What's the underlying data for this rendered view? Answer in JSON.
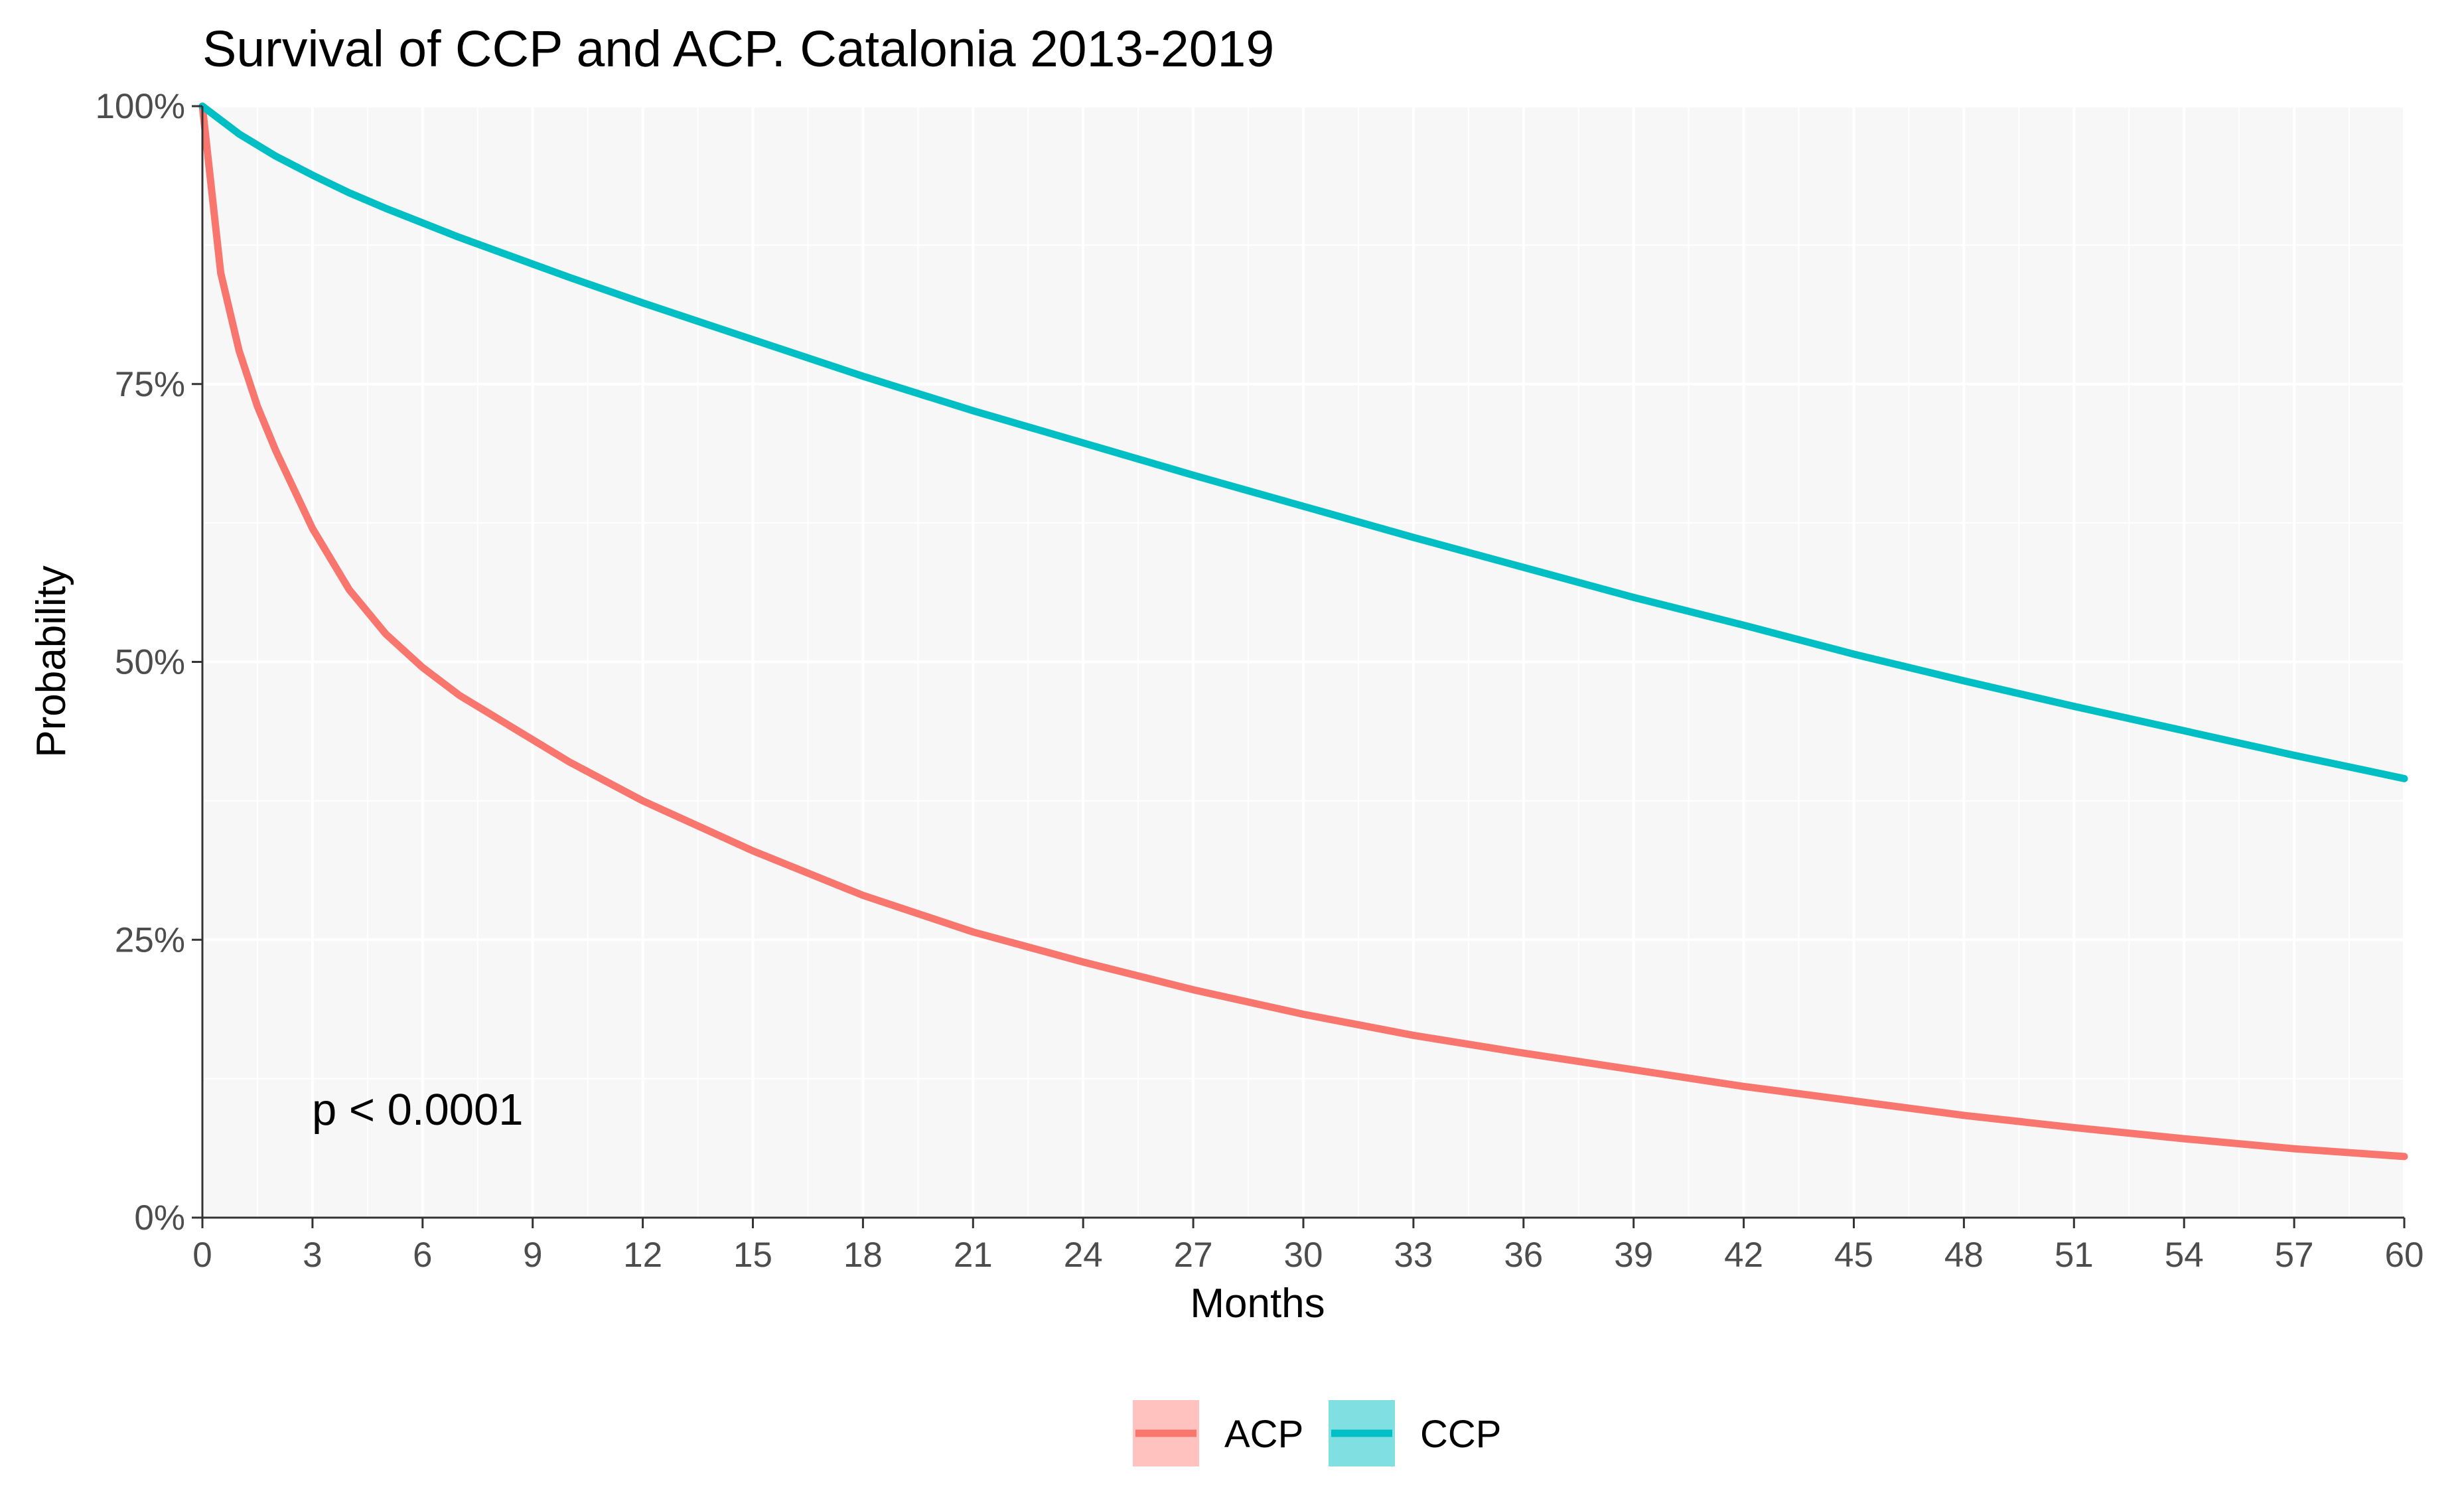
{
  "chart_data": {
    "type": "line",
    "title": "Survival of CCP and ACP. Catalonia 2013-2019",
    "xlabel": "Months",
    "ylabel": "Probability",
    "xlim": [
      0,
      60
    ],
    "ylim": [
      0,
      1
    ],
    "x_ticks": [
      "0",
      "3",
      "6",
      "9",
      "12",
      "15",
      "18",
      "21",
      "24",
      "27",
      "30",
      "33",
      "36",
      "39",
      "42",
      "45",
      "48",
      "51",
      "54",
      "57",
      "60"
    ],
    "y_ticks": [
      "0%",
      "25%",
      "50%",
      "75%",
      "100%"
    ],
    "grid": true,
    "legend_position": "bottom",
    "annotation": "p < 0.0001",
    "series": [
      {
        "name": "ACP",
        "color": "#F8766D",
        "fill_color": "#FFC2BE",
        "x": [
          0,
          0.5,
          1,
          1.5,
          2,
          3,
          4,
          5,
          6,
          7,
          8,
          9,
          10,
          12,
          15,
          18,
          21,
          24,
          27,
          30,
          33,
          36,
          39,
          42,
          45,
          48,
          51,
          54,
          57,
          60
        ],
        "y": [
          1.0,
          0.85,
          0.78,
          0.73,
          0.69,
          0.62,
          0.565,
          0.525,
          0.495,
          0.47,
          0.45,
          0.43,
          0.41,
          0.375,
          0.33,
          0.29,
          0.257,
          0.23,
          0.205,
          0.183,
          0.164,
          0.148,
          0.133,
          0.118,
          0.105,
          0.092,
          0.081,
          0.071,
          0.062,
          0.055
        ]
      },
      {
        "name": "CCP",
        "color": "#00BFC4",
        "fill_color": "#7FDFE1",
        "x": [
          0,
          1,
          2,
          3,
          4,
          5,
          6,
          7,
          8,
          9,
          10,
          12,
          15,
          18,
          21,
          24,
          27,
          30,
          33,
          36,
          39,
          42,
          45,
          48,
          51,
          54,
          57,
          60
        ],
        "y": [
          1.0,
          0.975,
          0.955,
          0.938,
          0.922,
          0.908,
          0.895,
          0.882,
          0.87,
          0.858,
          0.846,
          0.823,
          0.79,
          0.757,
          0.726,
          0.697,
          0.668,
          0.64,
          0.612,
          0.585,
          0.558,
          0.533,
          0.507,
          0.483,
          0.46,
          0.438,
          0.416,
          0.395
        ]
      }
    ]
  }
}
